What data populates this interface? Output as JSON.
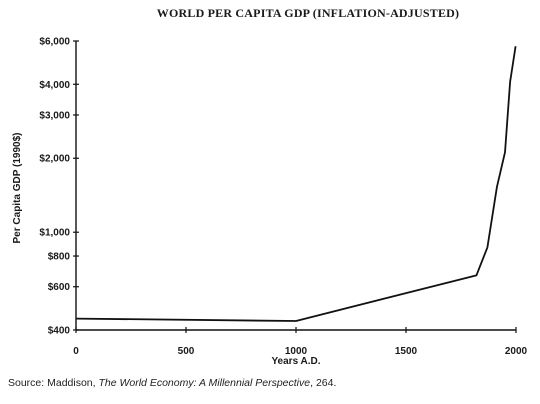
{
  "chart_data": {
    "type": "line",
    "title": "WORLD PER CAPITA GDP (INFLATION-ADJUSTED)",
    "xlabel": "Years A.D.",
    "ylabel": "Per Capita GDP (1990$)",
    "y_scale": "log",
    "xlim": [
      0,
      2000
    ],
    "ylim": [
      400,
      6000
    ],
    "x_ticks": [
      0,
      500,
      1000,
      1500,
      2000
    ],
    "x_tick_labels": [
      "0",
      "500",
      "1000",
      "1500",
      "2000"
    ],
    "y_ticks": [
      400,
      600,
      800,
      1000,
      2000,
      3000,
      4000,
      6000
    ],
    "y_tick_labels": [
      "$400",
      "$600",
      "$800",
      "$1,000",
      "$2,000",
      "$3,000",
      "$4,000",
      "$6,000"
    ],
    "grid": false,
    "series": [
      {
        "x": [
          0,
          1000,
          1500,
          1820,
          1870,
          1913,
          1950,
          1973,
          1998
        ],
        "values": [
          445,
          435,
          565,
          667,
          867,
          1526,
          2114,
          4091,
          5709
        ]
      }
    ]
  },
  "source": {
    "prefix": "Source:  Maddison, ",
    "work": "The World Economy: A Millennial Perspective",
    "suffix": ", 264."
  }
}
